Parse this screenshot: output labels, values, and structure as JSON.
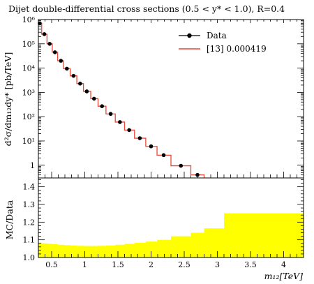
{
  "chart_data": [
    {
      "type": "line",
      "title": "Dijet double-differential cross sections (0.5 < y* < 1.0), R=0.4",
      "ylabel": "d²σ/dm₁₂dy* [pb/TeV]",
      "yscale": "log",
      "ylim": [
        0.3,
        1000000
      ],
      "xlim": [
        0.3,
        4.3
      ],
      "y_tick_labels": [
        "1",
        "10¹",
        "10²",
        "10³",
        "10⁴",
        "10⁵",
        "10⁶"
      ],
      "legend_position": "top-right",
      "series": [
        {
          "name": "Data",
          "style": "points",
          "color": "#000000",
          "x": [
            0.32,
            0.39,
            0.47,
            0.55,
            0.64,
            0.73,
            0.83,
            0.93,
            1.03,
            1.14,
            1.26,
            1.39,
            1.53,
            1.67,
            1.83,
            2.0,
            2.19,
            2.45,
            2.7
          ],
          "y": [
            700000,
            250000,
            100000,
            45000,
            20000,
            9500,
            4800,
            2300,
            1100,
            550,
            270,
            130,
            60,
            28,
            13,
            6,
            2.6,
            0.95,
            0.4
          ]
        },
        {
          "name": "[13] 0.000419",
          "style": "step",
          "color": "#e8473a",
          "bin_edges": [
            0.3,
            0.35,
            0.43,
            0.51,
            0.59,
            0.68,
            0.78,
            0.88,
            0.98,
            1.09,
            1.2,
            1.32,
            1.46,
            1.6,
            1.75,
            1.92,
            2.09,
            2.3,
            2.6,
            2.8
          ],
          "y": [
            700000,
            250000,
            100000,
            45000,
            20000,
            9500,
            4800,
            2300,
            1100,
            550,
            270,
            130,
            60,
            28,
            13,
            6,
            2.6,
            0.95,
            0.4
          ]
        }
      ]
    },
    {
      "type": "area",
      "xlabel": "m₁₂[TeV]",
      "ylabel": "MC/Data",
      "xlim": [
        0.3,
        4.3
      ],
      "ylim": [
        1.0,
        1.45
      ],
      "x_tick_labels": [
        "0.5",
        "1",
        "1.5",
        "2",
        "2.5",
        "3",
        "3.5",
        "4"
      ],
      "y_tick_labels": [
        "1.0",
        "1.1",
        "1.2",
        "1.3",
        "1.4"
      ],
      "band_color": "#ffff00",
      "band": {
        "bin_edges": [
          0.3,
          0.35,
          0.43,
          0.51,
          0.59,
          0.68,
          0.78,
          0.88,
          0.98,
          1.09,
          1.2,
          1.32,
          1.46,
          1.6,
          1.75,
          1.92,
          2.09,
          2.3,
          2.6,
          2.8,
          3.1,
          4.3
        ],
        "upper": [
          1.085,
          1.08,
          1.078,
          1.075,
          1.072,
          1.07,
          1.068,
          1.066,
          1.065,
          1.065,
          1.066,
          1.068,
          1.072,
          1.077,
          1.083,
          1.09,
          1.1,
          1.12,
          1.14,
          1.165,
          1.25
        ],
        "lower": [
          1.0,
          1.0,
          1.0,
          1.0,
          1.0,
          1.0,
          1.0,
          1.0,
          1.0,
          1.0,
          1.0,
          1.0,
          1.0,
          1.0,
          1.0,
          1.0,
          1.0,
          1.0,
          1.0,
          1.0,
          1.0
        ]
      }
    }
  ]
}
